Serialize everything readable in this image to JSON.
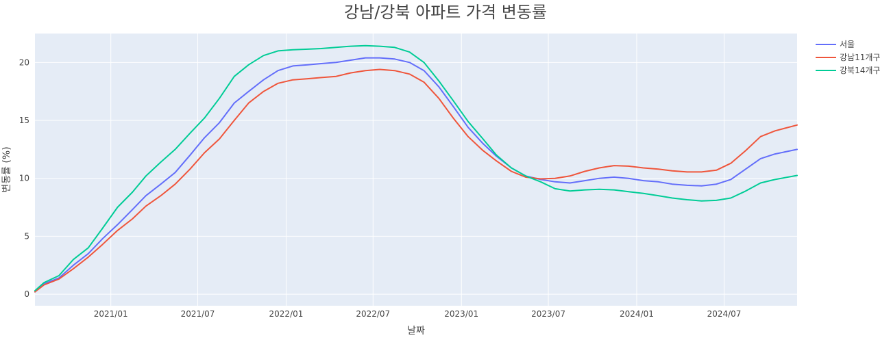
{
  "chart_data": {
    "type": "line",
    "title": "강남/강북 아파트 가격 변동률",
    "xlabel": "날짜",
    "ylabel": "변동률 (%)",
    "x_range": [
      "2020-07-27",
      "2024-11-30"
    ],
    "ylim": [
      -1,
      22.5
    ],
    "x_ticks": [
      {
        "date": "2021-01-01",
        "label": "2021/01"
      },
      {
        "date": "2021-07-01",
        "label": "2021/07"
      },
      {
        "date": "2022-01-01",
        "label": "2022/01"
      },
      {
        "date": "2022-07-01",
        "label": "2022/07"
      },
      {
        "date": "2023-01-01",
        "label": "2023/01"
      },
      {
        "date": "2023-07-01",
        "label": "2023/07"
      },
      {
        "date": "2024-01-01",
        "label": "2024/01"
      },
      {
        "date": "2024-07-01",
        "label": "2024/07"
      }
    ],
    "y_ticks": [
      0,
      5,
      10,
      15,
      20
    ],
    "grid": true,
    "legend_position": "top-right",
    "colors": {
      "plot_bg": "#E5ECF6",
      "grid": "#ffffff",
      "text": "#444444"
    },
    "series": [
      {
        "name": "서울",
        "color": "#636EFA",
        "points": [
          [
            "2020-07-27",
            0.2
          ],
          [
            "2020-08-15",
            0.9
          ],
          [
            "2020-09-15",
            1.4
          ],
          [
            "2020-10-15",
            2.5
          ],
          [
            "2020-11-15",
            3.5
          ],
          [
            "2020-12-15",
            4.8
          ],
          [
            "2021-01-15",
            6.0
          ],
          [
            "2021-02-15",
            7.3
          ],
          [
            "2021-03-15",
            8.5
          ],
          [
            "2021-04-15",
            9.5
          ],
          [
            "2021-05-15",
            10.5
          ],
          [
            "2021-06-15",
            12.0
          ],
          [
            "2021-07-15",
            13.5
          ],
          [
            "2021-08-15",
            14.8
          ],
          [
            "2021-09-15",
            16.5
          ],
          [
            "2021-10-15",
            17.5
          ],
          [
            "2021-11-15",
            18.5
          ],
          [
            "2021-12-15",
            19.3
          ],
          [
            "2022-01-15",
            19.7
          ],
          [
            "2022-02-15",
            19.8
          ],
          [
            "2022-03-15",
            19.9
          ],
          [
            "2022-04-15",
            20.0
          ],
          [
            "2022-05-15",
            20.2
          ],
          [
            "2022-06-15",
            20.4
          ],
          [
            "2022-07-15",
            20.4
          ],
          [
            "2022-08-15",
            20.3
          ],
          [
            "2022-09-15",
            20.0
          ],
          [
            "2022-10-15",
            19.3
          ],
          [
            "2022-11-15",
            17.9
          ],
          [
            "2022-12-15",
            16.2
          ],
          [
            "2023-01-15",
            14.4
          ],
          [
            "2023-02-15",
            13.0
          ],
          [
            "2023-03-15",
            11.9
          ],
          [
            "2023-04-15",
            10.9
          ],
          [
            "2023-05-15",
            10.2
          ],
          [
            "2023-06-15",
            9.9
          ],
          [
            "2023-07-15",
            9.7
          ],
          [
            "2023-08-15",
            9.6
          ],
          [
            "2023-09-15",
            9.8
          ],
          [
            "2023-10-15",
            10.0
          ],
          [
            "2023-11-15",
            10.1
          ],
          [
            "2023-12-15",
            10.0
          ],
          [
            "2024-01-15",
            9.8
          ],
          [
            "2024-02-15",
            9.7
          ],
          [
            "2024-03-15",
            9.5
          ],
          [
            "2024-04-15",
            9.4
          ],
          [
            "2024-05-15",
            9.35
          ],
          [
            "2024-06-15",
            9.5
          ],
          [
            "2024-07-15",
            9.9
          ],
          [
            "2024-08-15",
            10.8
          ],
          [
            "2024-09-15",
            11.7
          ],
          [
            "2024-10-15",
            12.1
          ],
          [
            "2024-11-30",
            12.5
          ]
        ]
      },
      {
        "name": "강남11개구",
        "color": "#EF553B",
        "points": [
          [
            "2020-07-27",
            0.2
          ],
          [
            "2020-08-15",
            0.8
          ],
          [
            "2020-09-15",
            1.3
          ],
          [
            "2020-10-15",
            2.2
          ],
          [
            "2020-11-15",
            3.2
          ],
          [
            "2020-12-15",
            4.3
          ],
          [
            "2021-01-15",
            5.5
          ],
          [
            "2021-02-15",
            6.5
          ],
          [
            "2021-03-15",
            7.6
          ],
          [
            "2021-04-15",
            8.5
          ],
          [
            "2021-05-15",
            9.5
          ],
          [
            "2021-06-15",
            10.8
          ],
          [
            "2021-07-15",
            12.2
          ],
          [
            "2021-08-15",
            13.4
          ],
          [
            "2021-09-15",
            15.0
          ],
          [
            "2021-10-15",
            16.5
          ],
          [
            "2021-11-15",
            17.5
          ],
          [
            "2021-12-15",
            18.2
          ],
          [
            "2022-01-15",
            18.5
          ],
          [
            "2022-02-15",
            18.6
          ],
          [
            "2022-03-15",
            18.7
          ],
          [
            "2022-04-15",
            18.8
          ],
          [
            "2022-05-15",
            19.1
          ],
          [
            "2022-06-15",
            19.3
          ],
          [
            "2022-07-15",
            19.4
          ],
          [
            "2022-08-15",
            19.3
          ],
          [
            "2022-09-15",
            19.0
          ],
          [
            "2022-10-15",
            18.3
          ],
          [
            "2022-11-15",
            16.9
          ],
          [
            "2022-12-15",
            15.2
          ],
          [
            "2023-01-15",
            13.6
          ],
          [
            "2023-02-15",
            12.4
          ],
          [
            "2023-03-15",
            11.5
          ],
          [
            "2023-04-15",
            10.6
          ],
          [
            "2023-05-15",
            10.1
          ],
          [
            "2023-06-15",
            9.95
          ],
          [
            "2023-07-15",
            10.0
          ],
          [
            "2023-08-15",
            10.2
          ],
          [
            "2023-09-15",
            10.6
          ],
          [
            "2023-10-15",
            10.9
          ],
          [
            "2023-11-15",
            11.1
          ],
          [
            "2023-12-15",
            11.05
          ],
          [
            "2024-01-15",
            10.9
          ],
          [
            "2024-02-15",
            10.8
          ],
          [
            "2024-03-15",
            10.65
          ],
          [
            "2024-04-15",
            10.55
          ],
          [
            "2024-05-15",
            10.55
          ],
          [
            "2024-06-15",
            10.7
          ],
          [
            "2024-07-15",
            11.3
          ],
          [
            "2024-08-15",
            12.4
          ],
          [
            "2024-09-15",
            13.6
          ],
          [
            "2024-10-15",
            14.1
          ],
          [
            "2024-11-30",
            14.6
          ]
        ]
      },
      {
        "name": "강북14개구",
        "color": "#00CC96",
        "points": [
          [
            "2020-07-27",
            0.3
          ],
          [
            "2020-08-15",
            1.0
          ],
          [
            "2020-09-15",
            1.6
          ],
          [
            "2020-10-15",
            3.0
          ],
          [
            "2020-11-15",
            4.0
          ],
          [
            "2020-12-15",
            5.7
          ],
          [
            "2021-01-15",
            7.5
          ],
          [
            "2021-02-15",
            8.8
          ],
          [
            "2021-03-15",
            10.2
          ],
          [
            "2021-04-15",
            11.4
          ],
          [
            "2021-05-15",
            12.5
          ],
          [
            "2021-06-15",
            13.9
          ],
          [
            "2021-07-15",
            15.2
          ],
          [
            "2021-08-15",
            16.9
          ],
          [
            "2021-09-15",
            18.8
          ],
          [
            "2021-10-15",
            19.8
          ],
          [
            "2021-11-15",
            20.6
          ],
          [
            "2021-12-15",
            21.0
          ],
          [
            "2022-01-15",
            21.1
          ],
          [
            "2022-02-15",
            21.15
          ],
          [
            "2022-03-15",
            21.2
          ],
          [
            "2022-04-15",
            21.3
          ],
          [
            "2022-05-15",
            21.4
          ],
          [
            "2022-06-15",
            21.45
          ],
          [
            "2022-07-15",
            21.4
          ],
          [
            "2022-08-15",
            21.3
          ],
          [
            "2022-09-15",
            20.9
          ],
          [
            "2022-10-15",
            20.0
          ],
          [
            "2022-11-15",
            18.4
          ],
          [
            "2022-12-15",
            16.7
          ],
          [
            "2023-01-15",
            14.9
          ],
          [
            "2023-02-15",
            13.4
          ],
          [
            "2023-03-15",
            12.0
          ],
          [
            "2023-04-15",
            10.9
          ],
          [
            "2023-05-15",
            10.2
          ],
          [
            "2023-06-15",
            9.7
          ],
          [
            "2023-07-15",
            9.1
          ],
          [
            "2023-08-15",
            8.9
          ],
          [
            "2023-09-15",
            9.0
          ],
          [
            "2023-10-15",
            9.05
          ],
          [
            "2023-11-15",
            9.0
          ],
          [
            "2023-12-15",
            8.85
          ],
          [
            "2024-01-15",
            8.7
          ],
          [
            "2024-02-15",
            8.5
          ],
          [
            "2024-03-15",
            8.3
          ],
          [
            "2024-04-15",
            8.15
          ],
          [
            "2024-05-15",
            8.05
          ],
          [
            "2024-06-15",
            8.1
          ],
          [
            "2024-07-15",
            8.3
          ],
          [
            "2024-08-15",
            8.9
          ],
          [
            "2024-09-15",
            9.6
          ],
          [
            "2024-10-15",
            9.9
          ],
          [
            "2024-11-30",
            10.25
          ]
        ]
      }
    ]
  }
}
